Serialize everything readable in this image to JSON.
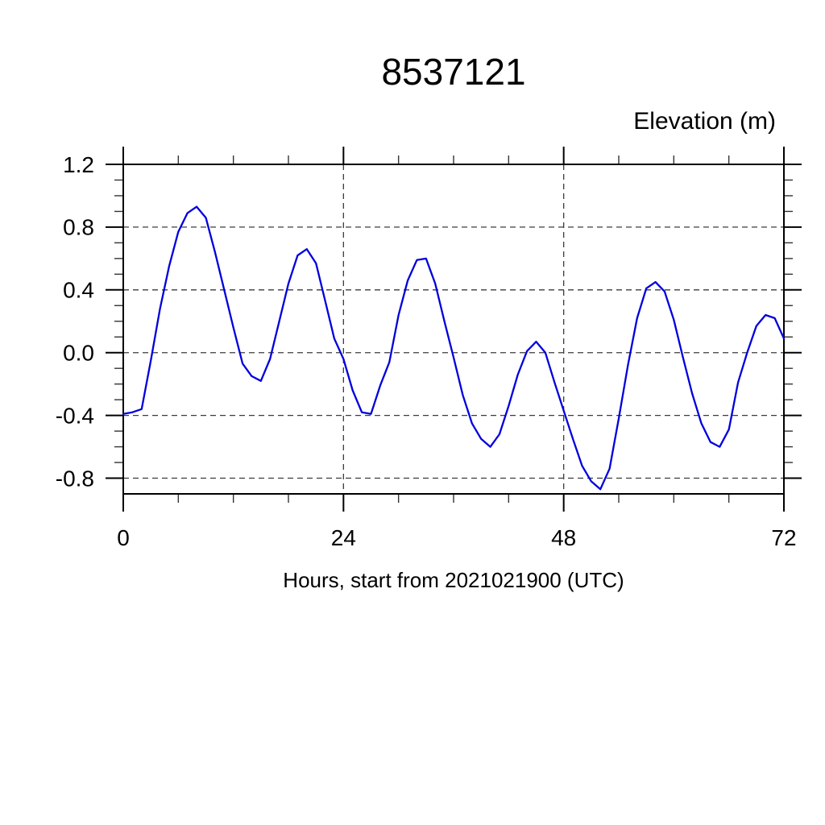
{
  "figure": {
    "title": "8537121",
    "y_axis_title": "Elevation (m)",
    "x_axis_label": "Hours, start from 2021021900 (UTC)"
  },
  "colors": {
    "background": "#ffffff",
    "axis": "#000000",
    "grid": "#3c3c3c",
    "text": "#000000",
    "line": "#0000dd"
  },
  "chart_data": {
    "type": "line",
    "title": "8537121",
    "xlabel": "Hours, start from 2021021900 (UTC)",
    "ylabel": "Elevation (m)",
    "xlim": [
      0,
      72
    ],
    "ylim": [
      -0.9,
      1.2
    ],
    "x_major_ticks": [
      0,
      24,
      48,
      72
    ],
    "x_tick_labels": [
      "0",
      "24",
      "48",
      "72"
    ],
    "x_minor_tick_step": 6,
    "y_major_ticks": [
      1.2,
      0.8,
      0.4,
      0.0,
      -0.4,
      -0.8
    ],
    "y_tick_labels": [
      "1.2",
      "0.8",
      "0.4",
      "0.0",
      "-0.4",
      "-0.8"
    ],
    "y_minor_tick_step": 0.1,
    "grid": "dashed lines at major ticks",
    "legend": "none",
    "line_color": "#0000dd",
    "series": [
      {
        "name": "elevation",
        "x": [
          0,
          1,
          2,
          3,
          4,
          5,
          6,
          7,
          8,
          9,
          10,
          11,
          12,
          13,
          14,
          15,
          16,
          17,
          18,
          19,
          20,
          21,
          22,
          23,
          24,
          25,
          26,
          27,
          28,
          29,
          30,
          31,
          32,
          33,
          34,
          35,
          36,
          37,
          38,
          39,
          40,
          41,
          42,
          43,
          44,
          45,
          46,
          47,
          48,
          49,
          50,
          51,
          52,
          53,
          54,
          55,
          56,
          57,
          58,
          59,
          60,
          61,
          62,
          63,
          64,
          65,
          66,
          67,
          68,
          69,
          70,
          71,
          72
        ],
        "values": [
          -0.39,
          -0.38,
          -0.36,
          -0.05,
          0.28,
          0.55,
          0.77,
          0.89,
          0.93,
          0.86,
          0.64,
          0.4,
          0.16,
          -0.07,
          -0.15,
          -0.18,
          -0.04,
          0.2,
          0.44,
          0.62,
          0.66,
          0.57,
          0.33,
          0.09,
          -0.04,
          -0.24,
          -0.38,
          -0.39,
          -0.21,
          -0.06,
          0.24,
          0.46,
          0.59,
          0.6,
          0.44,
          0.2,
          -0.03,
          -0.27,
          -0.45,
          -0.55,
          -0.6,
          -0.52,
          -0.34,
          -0.14,
          0.01,
          0.07,
          0.0,
          -0.19,
          -0.37,
          -0.55,
          -0.72,
          -0.82,
          -0.87,
          -0.74,
          -0.42,
          -0.08,
          0.22,
          0.41,
          0.45,
          0.39,
          0.21,
          -0.03,
          -0.26,
          -0.45,
          -0.57,
          -0.6,
          -0.49,
          -0.19,
          0.0,
          0.17,
          0.24,
          0.22,
          0.09
        ]
      }
    ]
  }
}
